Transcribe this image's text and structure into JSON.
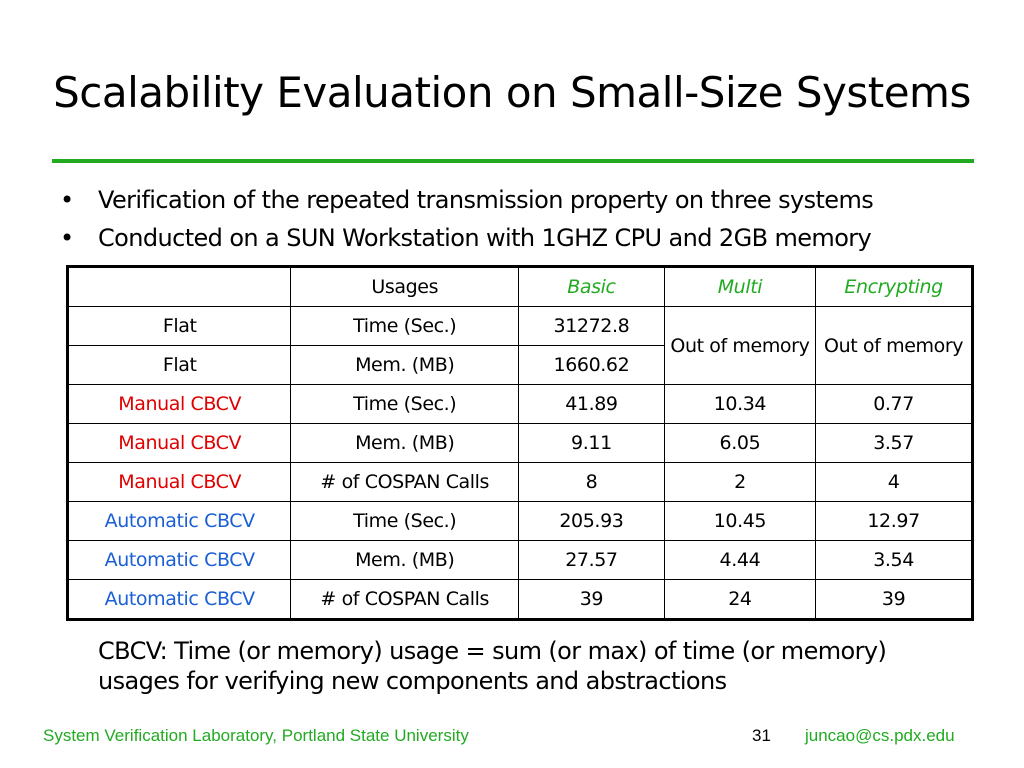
{
  "title": "Scalability Evaluation on Small-Size Systems",
  "bullets": [
    "Verification of the repeated transmission property on three systems",
    "Conducted on a SUN Workstation with 1GHZ CPU and 2GB memory"
  ],
  "bullet_glyph": "•",
  "table": {
    "headers": [
      "",
      "Usages",
      "Basic",
      "Multi",
      "Encrypting"
    ],
    "out_of_memory": "Out of memory",
    "rows": [
      {
        "method": "Flat",
        "usage": "Time (Sec.)",
        "basic": "31272.8"
      },
      {
        "method": "Flat",
        "usage": "Mem. (MB)",
        "basic": "1660.62"
      },
      {
        "method": "Manual CBCV",
        "usage": "Time (Sec.)",
        "basic": "41.89",
        "multi": "10.34",
        "encrypting": "0.77"
      },
      {
        "method": "Manual CBCV",
        "usage": "Mem. (MB)",
        "basic": "9.11",
        "multi": "6.05",
        "encrypting": "3.57"
      },
      {
        "method": "Manual CBCV",
        "usage": "# of COSPAN Calls",
        "basic": "8",
        "multi": "2",
        "encrypting": "4"
      },
      {
        "method": "Automatic CBCV",
        "usage": "Time (Sec.)",
        "basic": "205.93",
        "multi": "10.45",
        "encrypting": "12.97"
      },
      {
        "method": "Automatic CBCV",
        "usage": "Mem. (MB)",
        "basic": "27.57",
        "multi": "4.44",
        "encrypting": "3.54"
      },
      {
        "method": "Automatic CBCV",
        "usage": "# of COSPAN Calls",
        "basic": "39",
        "multi": "24",
        "encrypting": "39"
      }
    ]
  },
  "note": {
    "line1": "CBCV: Time (or memory) usage = sum (or max) of time (or memory)",
    "line2": "usages for verifying new components and abstractions"
  },
  "footer": {
    "left": "System Verification Laboratory, Portland State University",
    "page": "31",
    "email": "juncao@cs.pdx.edu"
  },
  "colors": {
    "accent_green": "#22aa22",
    "manual_red": "#e00000",
    "automatic_blue": "#1a5fd6"
  }
}
